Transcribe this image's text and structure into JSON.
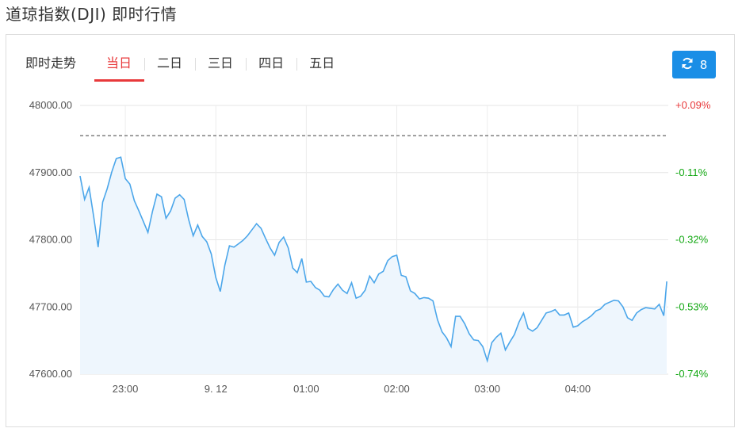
{
  "page": {
    "title": "道琼指数(DJI) 即时行情"
  },
  "tabs": {
    "heading": "即时走势",
    "items": [
      {
        "label": "当日",
        "active": true
      },
      {
        "label": "二日",
        "active": false
      },
      {
        "label": "三日",
        "active": false
      },
      {
        "label": "四日",
        "active": false
      },
      {
        "label": "五日",
        "active": false
      }
    ]
  },
  "refresh_button": {
    "icon": "refresh-icon",
    "count": "8"
  },
  "colors": {
    "accent": "#1a8ee6",
    "tab_active": "#e8393b",
    "line": "#4ba6ea",
    "fill": "#eef6fd",
    "up": "#e8393b",
    "down": "#13a813"
  },
  "chart_data": {
    "type": "area",
    "title": "",
    "xlabel": "",
    "ylabel": "",
    "ylim": [
      47600,
      48000
    ],
    "xlim": [
      "22:30",
      "05:00"
    ],
    "grid": true,
    "y_ticks": [
      "48000.00",
      "47900.00",
      "47800.00",
      "47700.00",
      "47600.00"
    ],
    "y_tick_values": [
      48000,
      47900,
      47800,
      47700,
      47600
    ],
    "right_ticks": [
      "+0.09%",
      "-0.11%",
      "-0.32%",
      "-0.53%",
      "-0.74%"
    ],
    "x_ticks": [
      {
        "label": "23:00",
        "time": "23:00"
      },
      {
        "label": "9. 12",
        "time": "00:00"
      },
      {
        "label": "01:00",
        "time": "01:00"
      },
      {
        "label": "02:00",
        "time": "02:00"
      },
      {
        "label": "03:00",
        "time": "03:00"
      },
      {
        "label": "04:00",
        "time": "04:00"
      }
    ],
    "reference_line": 47955,
    "x": [
      "22:30",
      "22:33",
      "22:36",
      "22:39",
      "22:42",
      "22:45",
      "22:48",
      "22:51",
      "22:54",
      "22:57",
      "23:00",
      "23:03",
      "23:06",
      "23:09",
      "23:12",
      "23:15",
      "23:18",
      "23:21",
      "23:24",
      "23:27",
      "23:30",
      "23:33",
      "23:36",
      "23:39",
      "23:42",
      "23:45",
      "23:48",
      "23:51",
      "23:54",
      "23:57",
      "00:00",
      "00:03",
      "00:06",
      "00:09",
      "00:12",
      "00:15",
      "00:18",
      "00:21",
      "00:24",
      "00:27",
      "00:30",
      "00:33",
      "00:36",
      "00:39",
      "00:42",
      "00:45",
      "00:48",
      "00:51",
      "00:54",
      "00:57",
      "01:00",
      "01:03",
      "01:06",
      "01:09",
      "01:12",
      "01:15",
      "01:18",
      "01:21",
      "01:24",
      "01:27",
      "01:30",
      "01:33",
      "01:36",
      "01:39",
      "01:42",
      "01:45",
      "01:48",
      "01:51",
      "01:54",
      "01:57",
      "02:00",
      "02:03",
      "02:06",
      "02:09",
      "02:12",
      "02:15",
      "02:18",
      "02:21",
      "02:24",
      "02:27",
      "02:30",
      "02:33",
      "02:36",
      "02:39",
      "02:42",
      "02:45",
      "02:48",
      "02:51",
      "02:54",
      "02:57",
      "03:00",
      "03:03",
      "03:06",
      "03:09",
      "03:12",
      "03:15",
      "03:18",
      "03:21",
      "03:24",
      "03:27",
      "03:30",
      "03:33",
      "03:36",
      "03:39",
      "03:42",
      "03:45",
      "03:48",
      "03:51",
      "03:54",
      "03:57",
      "04:00",
      "04:03",
      "04:06",
      "04:09",
      "04:12",
      "04:15",
      "04:18",
      "04:21",
      "04:24",
      "04:27",
      "04:30",
      "04:33",
      "04:36",
      "04:39",
      "04:42",
      "04:45",
      "04:48",
      "04:51",
      "04:54",
      "04:57",
      "04:59"
    ],
    "values": [
      47895,
      47860,
      47878,
      47835,
      47789,
      47856,
      47876,
      47901,
      47921,
      47923,
      47891,
      47883,
      47858,
      47843,
      47827,
      47811,
      47842,
      47868,
      47864,
      47832,
      47843,
      47862,
      47867,
      47860,
      47830,
      47806,
      47822,
      47805,
      47797,
      47779,
      47744,
      47723,
      47762,
      47791,
      47789,
      47794,
      47799,
      47806,
      47815,
      47824,
      47817,
      47802,
      47788,
      47777,
      47796,
      47804,
      47788,
      47758,
      47751,
      47772,
      47737,
      47738,
      47729,
      47725,
      47716,
      47715,
      47726,
      47734,
      47725,
      47720,
      47736,
      47713,
      47716,
      47725,
      47746,
      47736,
      47749,
      47753,
      47769,
      47775,
      47777,
      47747,
      47745,
      47724,
      47720,
      47712,
      47714,
      47713,
      47709,
      47681,
      47663,
      47654,
      47641,
      47686,
      47686,
      47675,
      47660,
      47651,
      47650,
      47641,
      47620,
      47647,
      47655,
      47661,
      47636,
      47648,
      47659,
      47677,
      47691,
      47668,
      47664,
      47669,
      47680,
      47691,
      47693,
      47696,
      47688,
      47688,
      47691,
      47670,
      47672,
      47678,
      47682,
      47687,
      47694,
      47697,
      47704,
      47707,
      47710,
      47709,
      47700,
      47684,
      47680,
      47691,
      47696,
      47699,
      47698,
      47697,
      47704,
      47687,
      47738
    ]
  }
}
